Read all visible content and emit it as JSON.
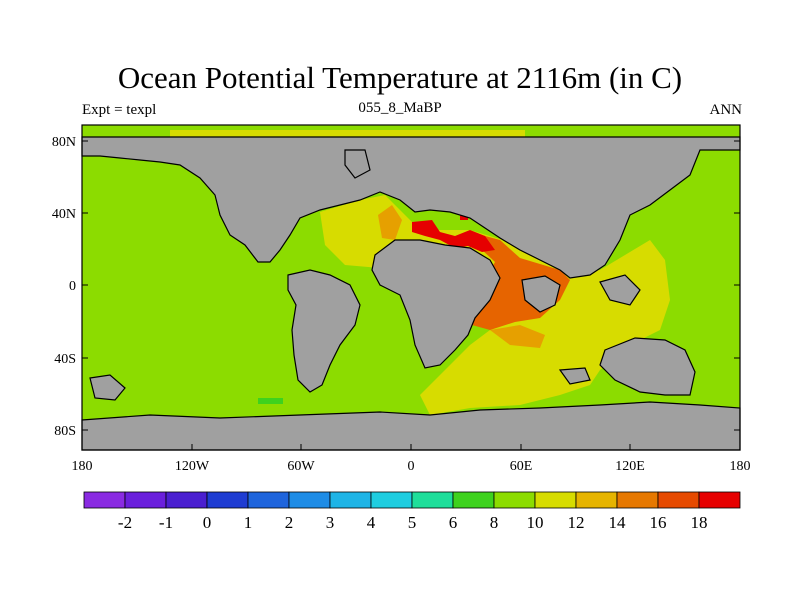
{
  "title": "Ocean Potential Temperature at 2116m (in C)",
  "subtitle": {
    "left": "Expt = texpl",
    "center": "055_8_MaBP",
    "right": "ANN"
  },
  "axes": {
    "x_ticks": [
      "180",
      "120W",
      "60W",
      "0",
      "60E",
      "120E",
      "180"
    ],
    "y_ticks": [
      "80N",
      "40N",
      "0",
      "40S",
      "80S"
    ]
  },
  "legend": {
    "colors": [
      "#8a2be2",
      "#6a1fdc",
      "#4a1fd0",
      "#1e3cd2",
      "#1e64dc",
      "#1e8ce6",
      "#1eb4e6",
      "#1ecde0",
      "#1ede9a",
      "#3ed21e",
      "#8cdc00",
      "#d7dc00",
      "#e6b400",
      "#e67800",
      "#e64a00",
      "#e60000"
    ],
    "labels": [
      "-2",
      "-1",
      "0",
      "1",
      "2",
      "3",
      "4",
      "5",
      "6",
      "8",
      "10",
      "12",
      "14",
      "16",
      "18"
    ]
  },
  "palette": {
    "land": "#a0a0a0",
    "c10": "#8cdc00",
    "c12": "#d7dc00",
    "c14": "#e6a000",
    "c16": "#e66400",
    "c18": "#e60000",
    "c8": "#3ed21e"
  }
}
